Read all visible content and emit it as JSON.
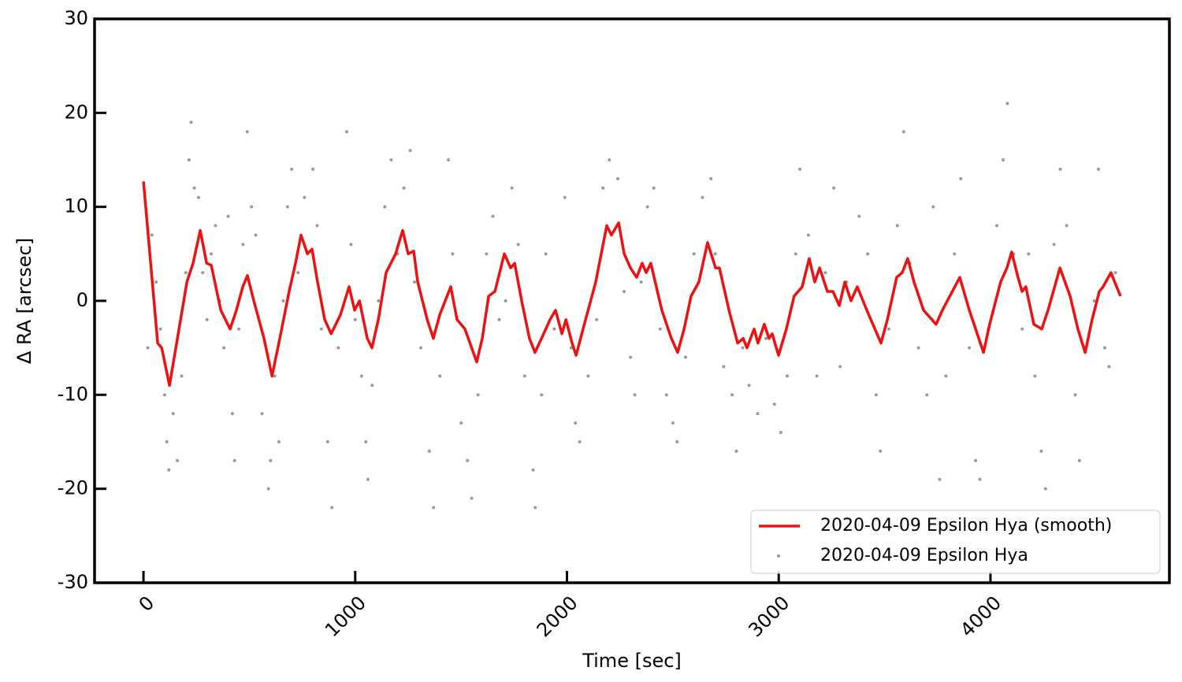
{
  "chart_data": {
    "type": "line",
    "xlabel": "Time [sec]",
    "ylabel": "Δ RA [arcsec]",
    "xlim": [
      -231,
      4845
    ],
    "ylim": [
      -30,
      30
    ],
    "xticks": [
      0,
      1000,
      2000,
      3000,
      4000
    ],
    "yticks": [
      -30,
      -20,
      -10,
      0,
      10,
      20,
      30
    ],
    "legend": "lower right",
    "series": [
      {
        "name": "2020-04-09 Epsilon Hya (smooth)",
        "type": "line",
        "color": "#ee1111",
        "x": [
          0,
          67,
          86,
          123,
          205,
          234,
          268,
          298,
          320,
          365,
          409,
          439,
          469,
          491,
          521,
          569,
          607,
          644,
          688,
          718,
          744,
          774,
          796,
          822,
          856,
          886,
          930,
          971,
          997,
          1020,
          1057,
          1079,
          1109,
          1146,
          1191,
          1224,
          1250,
          1276,
          1295,
          1340,
          1369,
          1399,
          1451,
          1481,
          1518,
          1574,
          1600,
          1630,
          1660,
          1704,
          1734,
          1753,
          1786,
          1823,
          1849,
          1890,
          1920,
          1946,
          1976,
          1995,
          2024,
          2043,
          2076,
          2136,
          2188,
          2210,
          2244,
          2270,
          2300,
          2329,
          2355,
          2374,
          2396,
          2448,
          2493,
          2523,
          2553,
          2586,
          2623,
          2664,
          2702,
          2720,
          2765,
          2806,
          2832,
          2850,
          2884,
          2902,
          2932,
          2954,
          2969,
          2999,
          3036,
          3073,
          3111,
          3144,
          3170,
          3193,
          3230,
          3256,
          3286,
          3312,
          3341,
          3371,
          3416,
          3483,
          3513,
          3557,
          3583,
          3609,
          3639,
          3684,
          3743,
          3773,
          3855,
          3900,
          3967,
          3996,
          4048,
          4078,
          4100,
          4130,
          4149,
          4167,
          4205,
          4242,
          4272,
          4328,
          4376,
          4413,
          4447,
          4480,
          4514,
          4532,
          4569,
          4614
        ],
        "values": [
          12.7,
          -4.5,
          -5,
          -9,
          2,
          4,
          7.5,
          4,
          3.8,
          -1,
          -3,
          -1,
          1.5,
          2.7,
          0,
          -4,
          -8,
          -4,
          1,
          4,
          7,
          5,
          5.5,
          2,
          -2,
          -3.5,
          -1.5,
          1.5,
          -1,
          0,
          -4,
          -5,
          -2,
          3,
          5,
          7.5,
          5,
          5.3,
          2,
          -2,
          -4,
          -1.5,
          1.5,
          -2,
          -3,
          -6.5,
          -4,
          0.5,
          1,
          5,
          3.5,
          4,
          0,
          -4,
          -5.5,
          -3.5,
          -2,
          -1,
          -3.5,
          -2,
          -4.5,
          -5.8,
          -3,
          2,
          8,
          7,
          8.3,
          5,
          3.5,
          2.5,
          4,
          3,
          4,
          -1,
          -4,
          -5.5,
          -3,
          0.5,
          2,
          6.2,
          3.5,
          3.5,
          -1,
          -4.5,
          -4,
          -5,
          -3,
          -4.5,
          -2.5,
          -4,
          -3.5,
          -5.8,
          -3,
          0.5,
          1.5,
          4.5,
          2,
          3.5,
          1,
          1,
          -0.5,
          2,
          0,
          1.5,
          -1,
          -4.5,
          -2,
          2.5,
          3,
          4.5,
          2,
          -1,
          -2.5,
          -1,
          2.5,
          -1,
          -5.5,
          -2.5,
          2,
          3.5,
          5.2,
          2.5,
          1,
          1.5,
          -2.5,
          -3,
          -1,
          3.5,
          0.5,
          -3,
          -5.5,
          -2,
          1,
          1.5,
          3,
          0.5
        ]
      },
      {
        "name": "2020-04-09 Epsilon Hya",
        "type": "scatter",
        "color": "#000000",
        "x": [
          20,
          40,
          60,
          80,
          100,
          110,
          120,
          140,
          160,
          180,
          200,
          215,
          225,
          240,
          260,
          280,
          300,
          320,
          340,
          360,
          380,
          400,
          420,
          430,
          450,
          470,
          490,
          510,
          530,
          560,
          590,
          600,
          620,
          640,
          660,
          680,
          700,
          730,
          760,
          800,
          820,
          840,
          870,
          890,
          920,
          960,
          980,
          1000,
          1030,
          1050,
          1060,
          1080,
          1110,
          1140,
          1170,
          1200,
          1230,
          1260,
          1280,
          1310,
          1350,
          1370,
          1400,
          1440,
          1460,
          1500,
          1530,
          1550,
          1580,
          1620,
          1650,
          1680,
          1710,
          1740,
          1770,
          1800,
          1840,
          1850,
          1880,
          1900,
          1940,
          1990,
          2020,
          2040,
          2060,
          2100,
          2140,
          2170,
          2200,
          2240,
          2270,
          2300,
          2320,
          2350,
          2380,
          2410,
          2440,
          2470,
          2500,
          2520,
          2560,
          2600,
          2640,
          2680,
          2700,
          2740,
          2780,
          2800,
          2830,
          2860,
          2900,
          2940,
          2980,
          3010,
          3040,
          3080,
          3100,
          3140,
          3180,
          3220,
          3260,
          3290,
          3320,
          3380,
          3420,
          3460,
          3480,
          3520,
          3560,
          3590,
          3620,
          3660,
          3700,
          3730,
          3760,
          3790,
          3830,
          3860,
          3900,
          3930,
          3950,
          3990,
          4030,
          4060,
          4080,
          4110,
          4150,
          4180,
          4210,
          4240,
          4260,
          4300,
          4330,
          4360,
          4400,
          4420,
          4450,
          4490,
          4510,
          4540,
          4560,
          4590
        ],
        "values": [
          -5,
          7,
          2,
          -3,
          -10,
          -15,
          -18,
          -12,
          -17,
          -8,
          3,
          15,
          19,
          12,
          11,
          3,
          -2,
          5,
          8,
          0,
          -5,
          9,
          -12,
          -17,
          -3,
          6,
          18,
          10,
          7,
          -12,
          -20,
          -17,
          -8,
          -15,
          0,
          10,
          14,
          3,
          11,
          14,
          8,
          -3,
          -15,
          -22,
          -5,
          18,
          6,
          -2,
          -8,
          -15,
          -19,
          -9,
          0,
          10,
          15,
          5,
          12,
          16,
          2,
          -5,
          -16,
          -22,
          -8,
          15,
          5,
          -13,
          -17,
          -21,
          -10,
          5,
          9,
          -2,
          0,
          12,
          6,
          -8,
          -18,
          -22,
          -10,
          5,
          -3,
          11,
          -5,
          -13,
          -15,
          -8,
          -2,
          12,
          15,
          13,
          1,
          -6,
          -10,
          2,
          10,
          12,
          -3,
          -10,
          -13,
          -15,
          -6,
          5,
          11,
          13,
          5,
          -7,
          -10,
          -16,
          -5,
          -9,
          -12,
          -4,
          -11,
          -14,
          -8,
          5,
          14,
          7,
          -8,
          3,
          12,
          -7,
          2,
          9,
          5,
          -10,
          -16,
          -3,
          8,
          18,
          4,
          -5,
          -10,
          10,
          -19,
          -8,
          5,
          13,
          -5,
          -17,
          -19,
          -3,
          8,
          15,
          21,
          5,
          -3,
          5,
          -8,
          -16,
          -20,
          6,
          14,
          8,
          -10,
          -17,
          -5,
          0,
          14,
          -5,
          -7,
          3
        ]
      }
    ]
  }
}
